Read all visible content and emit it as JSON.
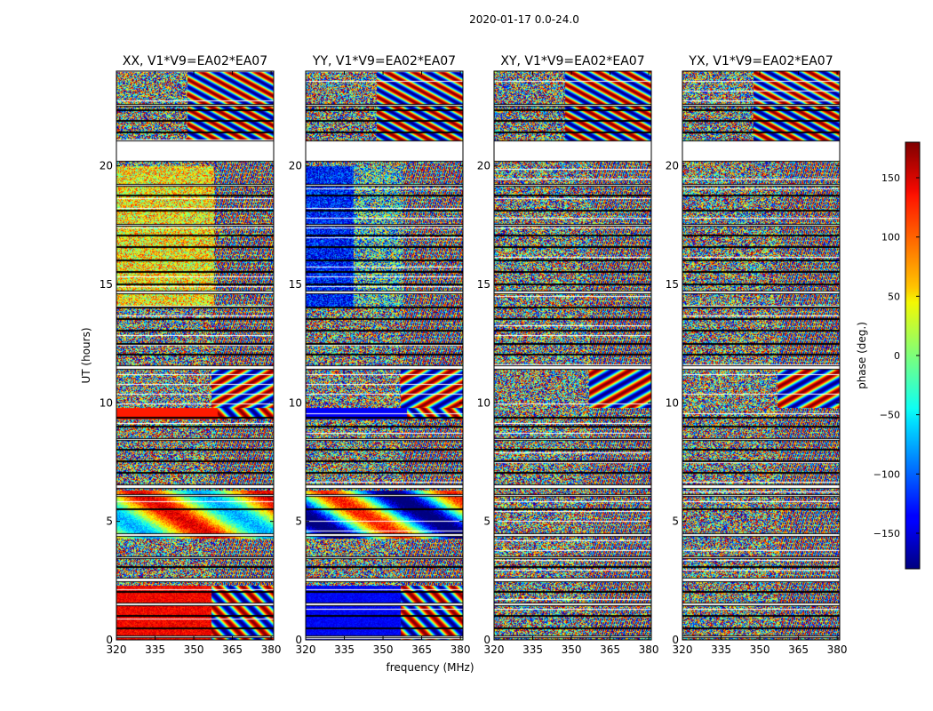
{
  "figure": {
    "suptitle": "2020-01-17 0.0-24.0"
  },
  "chart_data": {
    "type": "heatmap",
    "xlabel": "frequency (MHz)",
    "ylabel": "UT (hours)",
    "xlim": [
      320,
      381
    ],
    "ylim": [
      0,
      24
    ],
    "xticks": [
      320,
      335,
      350,
      365,
      380
    ],
    "yticks": [
      0,
      5,
      10,
      15,
      20
    ],
    "panels": [
      {
        "title": "XX, V1*V9=EA02*EA07",
        "pol": "XX"
      },
      {
        "title": "YY, V1*V9=EA02*EA07",
        "pol": "YY"
      },
      {
        "title": "XY, V1*V9=EA02*EA07",
        "pol": "XY"
      },
      {
        "title": "YX, V1*V9=EA02*EA07",
        "pol": "YX"
      }
    ],
    "flagged_ut_bands": [
      [
        0.12,
        0.17
      ],
      [
        0.48,
        0.52
      ],
      [
        1.02,
        1.06
      ],
      [
        1.46,
        1.56
      ],
      [
        2.04,
        2.08
      ],
      [
        2.48,
        2.62
      ],
      [
        3.08,
        3.12
      ],
      [
        3.44,
        3.52
      ],
      [
        4.38,
        4.5
      ],
      [
        5.5,
        5.55
      ],
      [
        6.08,
        6.16
      ],
      [
        6.4,
        6.55
      ],
      [
        7.04,
        7.08
      ],
      [
        7.52,
        7.56
      ],
      [
        8.02,
        8.06
      ],
      [
        8.44,
        8.5
      ],
      [
        9.0,
        9.05
      ],
      [
        9.36,
        9.42
      ],
      [
        11.42,
        11.58
      ],
      [
        12.02,
        12.06
      ],
      [
        12.48,
        12.54
      ],
      [
        13.06,
        13.1
      ],
      [
        13.52,
        13.56
      ],
      [
        14.02,
        14.06
      ],
      [
        14.62,
        14.72
      ],
      [
        15.0,
        15.05
      ],
      [
        15.52,
        15.56
      ],
      [
        16.02,
        16.06
      ],
      [
        16.56,
        16.6
      ],
      [
        17.06,
        17.1
      ],
      [
        17.48,
        17.54
      ],
      [
        18.12,
        18.16
      ],
      [
        18.74,
        18.8
      ],
      [
        19.18,
        19.22
      ],
      [
        20.2,
        21.06
      ],
      [
        21.42,
        21.46
      ],
      [
        21.9,
        21.94
      ],
      [
        22.34,
        22.38
      ],
      [
        22.54,
        22.6
      ]
    ],
    "colorbar": {
      "label": "phase (deg.)",
      "range": [
        -180,
        180
      ],
      "ticks": [
        -150,
        -100,
        -50,
        0,
        50,
        100,
        150
      ],
      "tick_labels": [
        "−150",
        "−100",
        "−50",
        "0",
        "50",
        "100",
        "150"
      ],
      "colormap": "jet"
    }
  }
}
